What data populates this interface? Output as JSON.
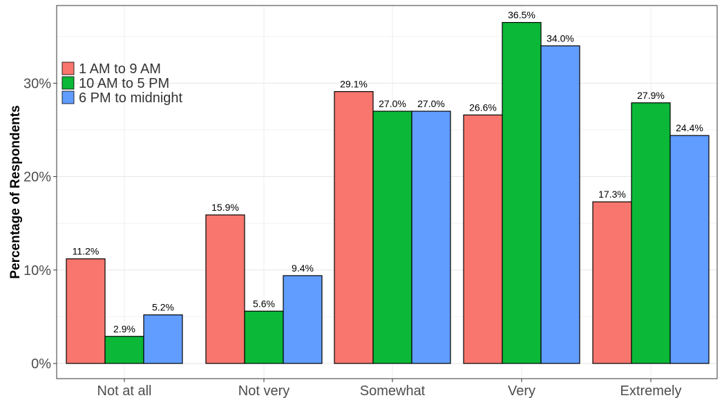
{
  "chart_data": {
    "type": "bar",
    "ylabel": "Percentage of Respondents",
    "xlabel": "",
    "categories": [
      "Not at all",
      "Not very",
      "Somewhat",
      "Very",
      "Extremely"
    ],
    "series": [
      {
        "name": "1 AM to 9 AM",
        "color": "#F8766D",
        "values": [
          11.2,
          15.9,
          29.1,
          26.6,
          17.3
        ],
        "labels": [
          "11.2%",
          "15.9%",
          "29.1%",
          "26.6%",
          "17.3%"
        ]
      },
      {
        "name": "10 AM to 5 PM",
        "color": "#0BB838",
        "values": [
          2.9,
          5.6,
          27.0,
          36.5,
          27.9
        ],
        "labels": [
          "2.9%",
          "5.6%",
          "27.0%",
          "36.5%",
          "27.9%"
        ]
      },
      {
        "name": "6 PM to midnight",
        "color": "#619CFF",
        "values": [
          5.2,
          9.4,
          27.0,
          34.0,
          24.4
        ],
        "labels": [
          "5.2%",
          "9.4%",
          "27.0%",
          "34.0%",
          "24.4%"
        ]
      }
    ],
    "yticks": [
      0,
      10,
      20,
      30
    ],
    "ytick_labels": [
      "0%",
      "10%",
      "20%",
      "30%"
    ],
    "ylim": [
      0,
      37.6
    ],
    "grid": true,
    "legend_position": "top-left"
  }
}
